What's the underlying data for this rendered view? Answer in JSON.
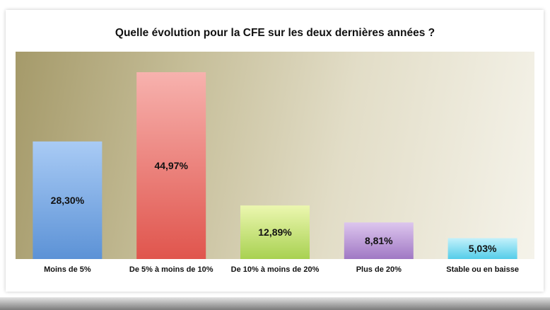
{
  "chart_data": {
    "type": "bar",
    "title": "Quelle évolution pour la CFE sur les deux dernières années ?",
    "categories": [
      "Moins de 5%",
      "De 5% à moins de 10%",
      "De 10% à moins de 20%",
      "Plus de 20%",
      "Stable ou en baisse"
    ],
    "values": [
      28.3,
      44.97,
      12.89,
      8.81,
      5.03
    ],
    "data_labels": [
      "28,30%",
      "44,97%",
      "12,89%",
      "8,81%",
      "5,03%"
    ],
    "colors": [
      [
        "#a9cbf5",
        "#5c92d6"
      ],
      [
        "#f7b2ae",
        "#e0554d"
      ],
      [
        "#ecf7b0",
        "#a8d151"
      ],
      [
        "#ddc6ee",
        "#a078c4"
      ],
      [
        "#c3f1fb",
        "#54cde9"
      ]
    ],
    "ylim": [
      0,
      45
    ],
    "grid": false,
    "legend": "none"
  }
}
